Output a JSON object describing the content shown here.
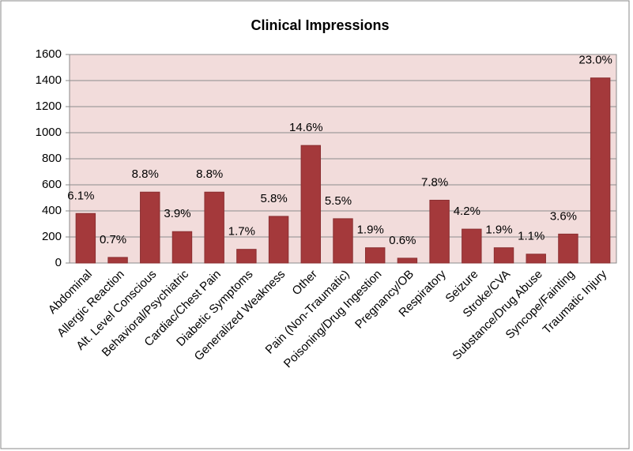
{
  "chart_data": {
    "type": "bar",
    "title": "Clinical Impressions",
    "categories": [
      "Abdominal",
      "Allergic Reaction",
      "Alt. Level Conscious",
      "Behavioral/Psychiatric",
      "Cardiac/Chest Pain",
      "Diabetic Symptoms",
      "Generalized Weakness",
      "Other",
      "Pain (Non-Traumatic)",
      "Poisoning/Drug Ingestion",
      "Pregnancy/OB",
      "Respiratory",
      "Seizure",
      "Stroke/CVA",
      "Substance/Drug Abuse",
      "Syncope/Fainting",
      "Traumatic Injury"
    ],
    "values": [
      380,
      43,
      544,
      241,
      544,
      105,
      358,
      902,
      340,
      117,
      37,
      482,
      260,
      117,
      68,
      222,
      1420
    ],
    "share_labels": [
      "6.1%",
      "0.7%",
      "8.8%",
      "3.9%",
      "8.8%",
      "1.7%",
      "5.8%",
      "14.6%",
      "5.5%",
      "1.9%",
      "0.6%",
      "7.8%",
      "4.2%",
      "1.9%",
      "1.1%",
      "3.6%",
      "23.0%"
    ],
    "color": "#a4393b",
    "ylim": [
      0,
      1600
    ],
    "yticks": [
      0,
      200,
      400,
      600,
      800,
      1000,
      1200,
      1400,
      1600
    ],
    "grid": true
  }
}
